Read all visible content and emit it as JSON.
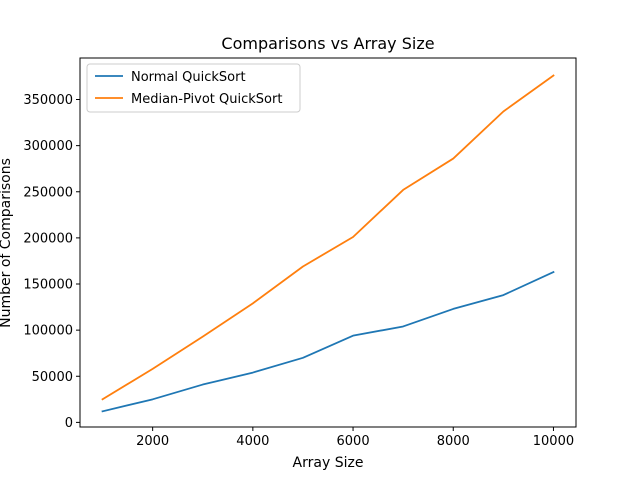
{
  "chart_data": {
    "type": "line",
    "title": "Comparisons vs Array Size",
    "xlabel": "Array Size",
    "ylabel": "Number of Comparisons",
    "x": [
      1000,
      2000,
      3000,
      4000,
      5000,
      6000,
      7000,
      8000,
      9000,
      10000
    ],
    "xlim": [
      550,
      10450
    ],
    "ylim": [
      -5000,
      395000
    ],
    "xticks": [
      2000,
      4000,
      6000,
      8000,
      10000
    ],
    "xtick_labels": [
      "2000",
      "4000",
      "6000",
      "8000",
      "10000"
    ],
    "yticks": [
      0,
      50000,
      100000,
      150000,
      200000,
      250000,
      300000,
      350000
    ],
    "ytick_labels": [
      "0",
      "50000",
      "100000",
      "150000",
      "200000",
      "250000",
      "300000",
      "350000"
    ],
    "grid": false,
    "legend_position": "top-left",
    "series": [
      {
        "name": "Normal QuickSort",
        "color": "#1f77b4",
        "values": [
          12000,
          25000,
          41000,
          54000,
          70000,
          94000,
          104000,
          123000,
          138000,
          163000
        ]
      },
      {
        "name": "Median-Pivot QuickSort",
        "color": "#ff7f0e",
        "values": [
          25000,
          58000,
          93000,
          129000,
          169000,
          201000,
          252000,
          286000,
          337000,
          376000
        ]
      }
    ]
  }
}
